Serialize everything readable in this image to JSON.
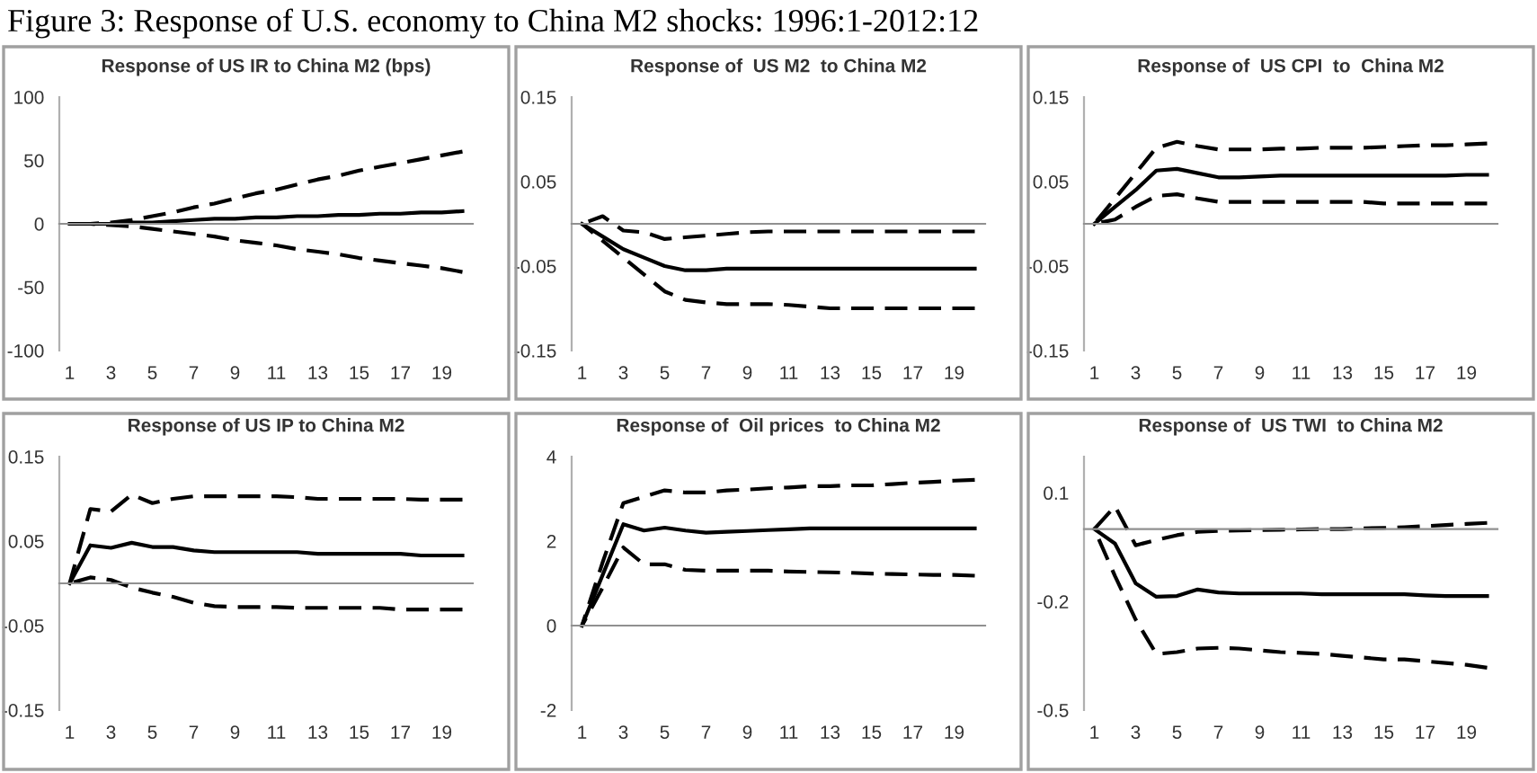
{
  "chart_data": [
    {
      "type": "line",
      "title": "Response of US IR to China M2 (bps)",
      "annotations": [
        "Figure 3: Response of U.S. economy to China M2 shocks: 1996:1-2012:12"
      ],
      "x": [
        1,
        2,
        3,
        4,
        5,
        6,
        7,
        8,
        9,
        10,
        11,
        12,
        13,
        14,
        15,
        16,
        17,
        18,
        19,
        20
      ],
      "xlim": [
        0.5,
        20.5
      ],
      "xticks": [
        1,
        3,
        5,
        7,
        9,
        11,
        13,
        15,
        17,
        19
      ],
      "ylim": [
        -100,
        100
      ],
      "yticks": [
        -100,
        -50,
        0,
        50,
        100
      ],
      "series": [
        {
          "color": "#000000",
          "line_style": "solid",
          "values": [
            0,
            0,
            0,
            1,
            1,
            2,
            3,
            4,
            4,
            5,
            5,
            6,
            6,
            7,
            7,
            8,
            8,
            9,
            9,
            10
          ]
        },
        {
          "color": "#000000",
          "line_style": "dashed",
          "values": [
            0,
            0,
            1,
            3,
            6,
            9,
            13,
            16,
            20,
            24,
            27,
            31,
            35,
            38,
            42,
            45,
            48,
            51,
            54,
            57
          ]
        },
        {
          "color": "#000000",
          "line_style": "dashed",
          "values": [
            0,
            0,
            -1,
            -2,
            -4,
            -6,
            -8,
            -10,
            -13,
            -15,
            -17,
            -20,
            -22,
            -24,
            -27,
            -29,
            -31,
            -33,
            -35,
            -38
          ]
        }
      ]
    },
    {
      "type": "line",
      "title": "Response of  US M2  to China M2",
      "x": [
        1,
        2,
        3,
        4,
        5,
        6,
        7,
        8,
        9,
        10,
        11,
        12,
        13,
        14,
        15,
        16,
        17,
        18,
        19,
        20
      ],
      "xlim": [
        0.5,
        20.5
      ],
      "xticks": [
        1,
        3,
        5,
        7,
        9,
        11,
        13,
        15,
        17,
        19
      ],
      "ylim": [
        -0.15,
        0.15
      ],
      "yticks": [
        -0.15,
        -0.05,
        0.05,
        0.15
      ],
      "series": [
        {
          "color": "#000000",
          "line_style": "solid",
          "values": [
            0,
            -0.015,
            -0.03,
            -0.04,
            -0.05,
            -0.055,
            -0.055,
            -0.053,
            -0.053,
            -0.053,
            -0.053,
            -0.053,
            -0.053,
            -0.053,
            -0.053,
            -0.053,
            -0.053,
            -0.053,
            -0.053,
            -0.053
          ]
        },
        {
          "color": "#000000",
          "line_style": "dashed",
          "values": [
            0,
            0.009,
            -0.008,
            -0.01,
            -0.018,
            -0.016,
            -0.014,
            -0.012,
            -0.01,
            -0.009,
            -0.009,
            -0.009,
            -0.009,
            -0.009,
            -0.009,
            -0.009,
            -0.009,
            -0.009,
            -0.009,
            -0.009
          ]
        },
        {
          "color": "#000000",
          "line_style": "dashed",
          "values": [
            0,
            -0.02,
            -0.04,
            -0.06,
            -0.08,
            -0.09,
            -0.093,
            -0.095,
            -0.095,
            -0.095,
            -0.096,
            -0.098,
            -0.1,
            -0.1,
            -0.1,
            -0.1,
            -0.1,
            -0.1,
            -0.1,
            -0.1
          ]
        }
      ]
    },
    {
      "type": "line",
      "title": "Response of  US CPI  to  China M2",
      "x": [
        1,
        2,
        3,
        4,
        5,
        6,
        7,
        8,
        9,
        10,
        11,
        12,
        13,
        14,
        15,
        16,
        17,
        18,
        19,
        20
      ],
      "xlim": [
        0.5,
        20.5
      ],
      "xticks": [
        1,
        3,
        5,
        7,
        9,
        11,
        13,
        15,
        17,
        19
      ],
      "ylim": [
        -0.15,
        0.15
      ],
      "yticks": [
        -0.15,
        -0.05,
        0.05,
        0.15
      ],
      "series": [
        {
          "color": "#000000",
          "line_style": "solid",
          "values": [
            0,
            0.02,
            0.04,
            0.063,
            0.065,
            0.06,
            0.055,
            0.055,
            0.056,
            0.057,
            0.057,
            0.057,
            0.057,
            0.057,
            0.057,
            0.057,
            0.057,
            0.057,
            0.058,
            0.058
          ]
        },
        {
          "color": "#000000",
          "line_style": "dashed",
          "values": [
            0,
            0.03,
            0.06,
            0.09,
            0.097,
            0.092,
            0.088,
            0.088,
            0.088,
            0.089,
            0.089,
            0.09,
            0.09,
            0.09,
            0.091,
            0.092,
            0.093,
            0.093,
            0.094,
            0.095
          ]
        },
        {
          "color": "#000000",
          "line_style": "dashed",
          "values": [
            0,
            0.005,
            0.02,
            0.033,
            0.035,
            0.03,
            0.026,
            0.026,
            0.026,
            0.026,
            0.026,
            0.026,
            0.026,
            0.026,
            0.024,
            0.024,
            0.024,
            0.024,
            0.024,
            0.024
          ]
        }
      ]
    },
    {
      "type": "line",
      "title": "Response of US IP to China M2",
      "x": [
        1,
        2,
        3,
        4,
        5,
        6,
        7,
        8,
        9,
        10,
        11,
        12,
        13,
        14,
        15,
        16,
        17,
        18,
        19,
        20
      ],
      "xlim": [
        0.5,
        20.5
      ],
      "xticks": [
        1,
        3,
        5,
        7,
        9,
        11,
        13,
        15,
        17,
        19
      ],
      "ylim": [
        -0.15,
        0.15
      ],
      "yticks": [
        -0.15,
        -0.05,
        0.05,
        0.15
      ],
      "series": [
        {
          "color": "#000000",
          "line_style": "solid",
          "values": [
            0,
            0.045,
            0.042,
            0.048,
            0.043,
            0.043,
            0.039,
            0.037,
            0.037,
            0.037,
            0.037,
            0.037,
            0.035,
            0.035,
            0.035,
            0.035,
            0.035,
            0.033,
            0.033,
            0.033
          ]
        },
        {
          "color": "#000000",
          "line_style": "dashed",
          "values": [
            0,
            0.088,
            0.085,
            0.105,
            0.095,
            0.1,
            0.103,
            0.103,
            0.103,
            0.103,
            0.103,
            0.102,
            0.1,
            0.1,
            0.1,
            0.1,
            0.1,
            0.099,
            0.099,
            0.099
          ]
        },
        {
          "color": "#000000",
          "line_style": "dashed",
          "values": [
            0,
            0.007,
            0.004,
            -0.005,
            -0.011,
            -0.016,
            -0.023,
            -0.027,
            -0.028,
            -0.028,
            -0.028,
            -0.029,
            -0.029,
            -0.029,
            -0.029,
            -0.029,
            -0.031,
            -0.031,
            -0.031,
            -0.031
          ]
        }
      ]
    },
    {
      "type": "line",
      "title": "Response of  Oil prices  to China M2",
      "x": [
        1,
        2,
        3,
        4,
        5,
        6,
        7,
        8,
        9,
        10,
        11,
        12,
        13,
        14,
        15,
        16,
        17,
        18,
        19,
        20
      ],
      "xlim": [
        0.5,
        20.5
      ],
      "xticks": [
        1,
        3,
        5,
        7,
        9,
        11,
        13,
        15,
        17,
        19
      ],
      "ylim": [
        -2,
        4
      ],
      "yticks": [
        -2,
        0,
        2,
        4
      ],
      "series": [
        {
          "color": "#000000",
          "line_style": "solid",
          "values": [
            0,
            1.2,
            2.4,
            2.25,
            2.32,
            2.25,
            2.2,
            2.22,
            2.24,
            2.26,
            2.28,
            2.3,
            2.3,
            2.3,
            2.3,
            2.3,
            2.3,
            2.3,
            2.3,
            2.3
          ]
        },
        {
          "color": "#000000",
          "line_style": "dashed",
          "values": [
            0,
            1.5,
            2.9,
            3.05,
            3.2,
            3.15,
            3.15,
            3.2,
            3.22,
            3.25,
            3.27,
            3.3,
            3.3,
            3.32,
            3.32,
            3.35,
            3.38,
            3.4,
            3.43,
            3.45
          ]
        },
        {
          "color": "#000000",
          "line_style": "dashed",
          "values": [
            0,
            0.9,
            1.85,
            1.45,
            1.45,
            1.32,
            1.3,
            1.3,
            1.3,
            1.3,
            1.28,
            1.27,
            1.26,
            1.25,
            1.23,
            1.22,
            1.21,
            1.2,
            1.2,
            1.18
          ]
        }
      ]
    },
    {
      "type": "line",
      "title": "Response of  US TWI  to China M2",
      "x": [
        1,
        2,
        3,
        4,
        5,
        6,
        7,
        8,
        9,
        10,
        11,
        12,
        13,
        14,
        15,
        16,
        17,
        18,
        19,
        20
      ],
      "xlim": [
        0.5,
        20.5
      ],
      "xticks": [
        1,
        3,
        5,
        7,
        9,
        11,
        13,
        15,
        17,
        19
      ],
      "ylim": [
        -0.5,
        0.2
      ],
      "yticks": [
        -0.5,
        -0.2,
        0.1
      ],
      "series": [
        {
          "color": "#000000",
          "line_style": "solid",
          "values": [
            0,
            -0.04,
            -0.15,
            -0.187,
            -0.185,
            -0.167,
            -0.175,
            -0.178,
            -0.178,
            -0.178,
            -0.178,
            -0.18,
            -0.18,
            -0.18,
            -0.18,
            -0.18,
            -0.183,
            -0.185,
            -0.185,
            -0.185
          ]
        },
        {
          "color": "#000000",
          "line_style": "dashed",
          "values": [
            0,
            0.063,
            -0.045,
            -0.03,
            -0.017,
            -0.008,
            -0.005,
            -0.004,
            -0.003,
            -0.002,
            -0.001,
            0,
            0,
            0.002,
            0.003,
            0.005,
            0.008,
            0.011,
            0.014,
            0.017
          ]
        },
        {
          "color": "#000000",
          "line_style": "dashed",
          "values": [
            0,
            -0.13,
            -0.25,
            -0.345,
            -0.34,
            -0.33,
            -0.328,
            -0.33,
            -0.335,
            -0.34,
            -0.342,
            -0.345,
            -0.35,
            -0.355,
            -0.36,
            -0.36,
            -0.365,
            -0.37,
            -0.375,
            -0.383
          ]
        }
      ]
    }
  ]
}
